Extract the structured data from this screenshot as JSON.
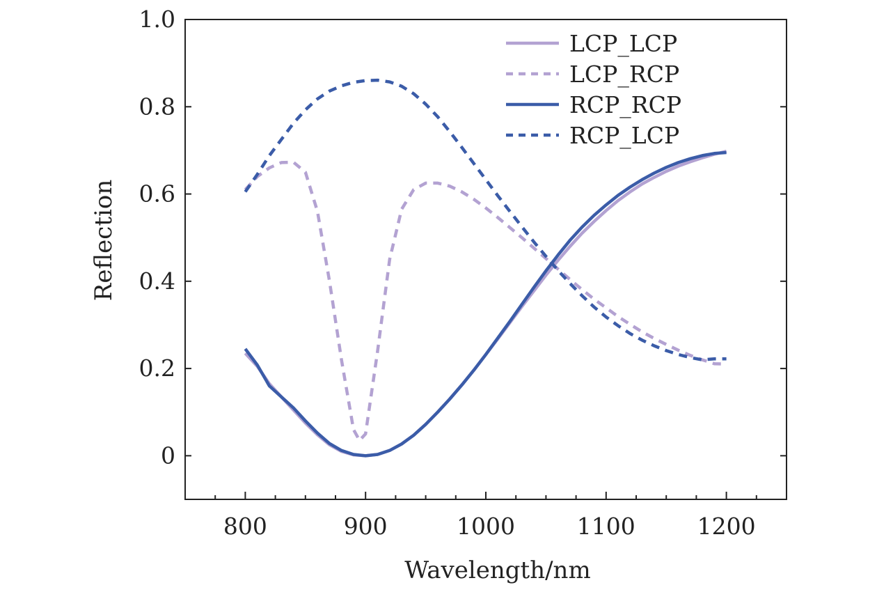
{
  "chart_data": {
    "type": "line",
    "xlabel": "Wavelength/nm",
    "ylabel": "Reflection",
    "xlim": [
      750,
      1250
    ],
    "ylim": [
      -0.1,
      1.0
    ],
    "xticks": [
      800,
      900,
      1000,
      1100,
      1200
    ],
    "xtick_labels": [
      "800",
      "900",
      "1000",
      "1100",
      "1200"
    ],
    "yticks": [
      0,
      0.2,
      0.4,
      0.6,
      0.8,
      1.0
    ],
    "ytick_labels": [
      "0",
      "0.2",
      "0.4",
      "0.6",
      "0.8",
      "1.0"
    ],
    "grid": false,
    "legend_position": "top-right",
    "series": [
      {
        "name": "LCP_LCP",
        "color": "#b3a2d2",
        "dash": "solid",
        "x": [
          800,
          810,
          820,
          830,
          840,
          850,
          860,
          870,
          880,
          890,
          900,
          910,
          920,
          930,
          940,
          950,
          960,
          970,
          980,
          990,
          1000,
          1010,
          1020,
          1030,
          1040,
          1050,
          1060,
          1070,
          1080,
          1090,
          1100,
          1110,
          1120,
          1130,
          1140,
          1150,
          1160,
          1170,
          1180,
          1190,
          1200
        ],
        "y": [
          0.235,
          0.205,
          0.165,
          0.135,
          0.105,
          0.075,
          0.048,
          0.025,
          0.01,
          0.002,
          0.0,
          0.003,
          0.012,
          0.027,
          0.047,
          0.072,
          0.1,
          0.13,
          0.162,
          0.196,
          0.232,
          0.268,
          0.305,
          0.342,
          0.378,
          0.414,
          0.448,
          0.48,
          0.51,
          0.537,
          0.562,
          0.585,
          0.605,
          0.623,
          0.638,
          0.652,
          0.664,
          0.674,
          0.683,
          0.691,
          0.698
        ]
      },
      {
        "name": "LCP_RCP",
        "color": "#b3a2d2",
        "dash": "dashed",
        "x": [
          800,
          810,
          820,
          830,
          840,
          850,
          860,
          870,
          880,
          890,
          895,
          900,
          910,
          920,
          930,
          940,
          950,
          960,
          970,
          980,
          990,
          1000,
          1010,
          1020,
          1030,
          1040,
          1050,
          1060,
          1070,
          1080,
          1090,
          1100,
          1110,
          1120,
          1130,
          1140,
          1150,
          1160,
          1170,
          1180,
          1190,
          1200
        ],
        "y": [
          0.61,
          0.64,
          0.66,
          0.672,
          0.673,
          0.65,
          0.56,
          0.4,
          0.22,
          0.06,
          0.035,
          0.05,
          0.24,
          0.45,
          0.565,
          0.61,
          0.625,
          0.625,
          0.618,
          0.605,
          0.588,
          0.568,
          0.546,
          0.523,
          0.5,
          0.476,
          0.452,
          0.428,
          0.404,
          0.381,
          0.359,
          0.339,
          0.319,
          0.301,
          0.284,
          0.269,
          0.255,
          0.242,
          0.23,
          0.22,
          0.211,
          0.21
        ]
      },
      {
        "name": "RCP_RCP",
        "color": "#3b5ca8",
        "dash": "solid",
        "x": [
          800,
          810,
          820,
          830,
          840,
          850,
          860,
          870,
          880,
          890,
          900,
          910,
          920,
          930,
          940,
          950,
          960,
          970,
          980,
          990,
          1000,
          1010,
          1020,
          1030,
          1040,
          1050,
          1060,
          1070,
          1080,
          1090,
          1100,
          1110,
          1120,
          1130,
          1140,
          1150,
          1160,
          1170,
          1180,
          1190,
          1200
        ],
        "y": [
          0.245,
          0.208,
          0.16,
          0.135,
          0.11,
          0.08,
          0.052,
          0.028,
          0.012,
          0.003,
          0.0,
          0.003,
          0.012,
          0.027,
          0.047,
          0.072,
          0.1,
          0.13,
          0.162,
          0.196,
          0.232,
          0.27,
          0.308,
          0.347,
          0.386,
          0.424,
          0.46,
          0.494,
          0.524,
          0.551,
          0.575,
          0.597,
          0.616,
          0.633,
          0.648,
          0.661,
          0.672,
          0.681,
          0.688,
          0.693,
          0.695
        ]
      },
      {
        "name": "RCP_LCP",
        "color": "#3b5ca8",
        "dash": "dashed",
        "x": [
          800,
          810,
          820,
          830,
          840,
          850,
          860,
          870,
          880,
          890,
          900,
          910,
          920,
          930,
          940,
          950,
          960,
          970,
          980,
          990,
          1000,
          1010,
          1020,
          1030,
          1040,
          1050,
          1060,
          1070,
          1080,
          1090,
          1100,
          1110,
          1120,
          1130,
          1140,
          1150,
          1160,
          1170,
          1180,
          1190,
          1200
        ],
        "y": [
          0.605,
          0.645,
          0.688,
          0.725,
          0.762,
          0.793,
          0.818,
          0.836,
          0.848,
          0.856,
          0.86,
          0.861,
          0.857,
          0.847,
          0.83,
          0.806,
          0.777,
          0.743,
          0.707,
          0.67,
          0.633,
          0.596,
          0.56,
          0.525,
          0.49,
          0.457,
          0.425,
          0.395,
          0.367,
          0.341,
          0.318,
          0.298,
          0.28,
          0.265,
          0.252,
          0.241,
          0.232,
          0.225,
          0.22,
          0.222,
          0.222
        ]
      }
    ]
  }
}
